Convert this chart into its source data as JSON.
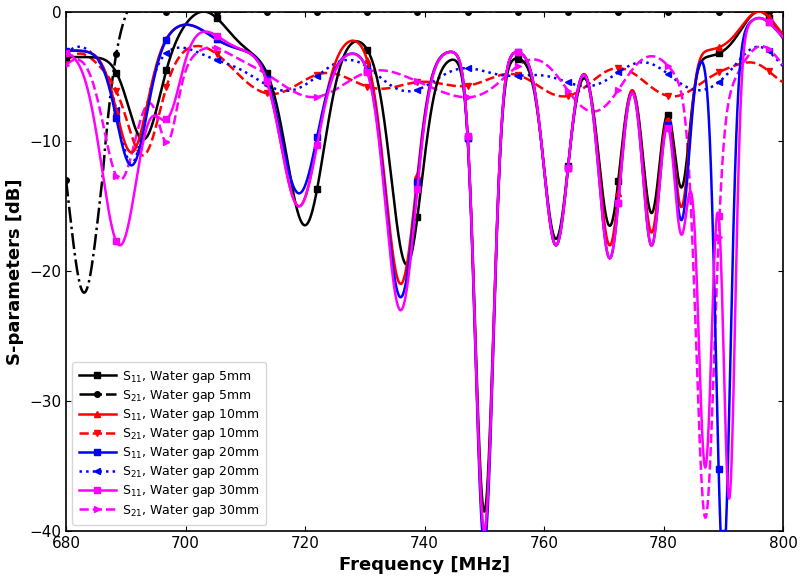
{
  "xlabel": "Frequency [MHz]",
  "ylabel": "S-parameters [dB]",
  "xlim": [
    680,
    800
  ],
  "ylim": [
    -40,
    0
  ],
  "xticks": [
    680,
    700,
    720,
    740,
    760,
    780,
    800
  ],
  "yticks": [
    0,
    -10,
    -20,
    -30,
    -40
  ],
  "legend_entries": [
    {
      "label": "S$_{11}$, Water gap 5mm",
      "color": "#000000",
      "linestyle": "-",
      "marker": "s"
    },
    {
      "label": "S$_{21}$, Water gap 5mm",
      "color": "#000000",
      "linestyle": "-.",
      "marker": "o"
    },
    {
      "label": "S$_{11}$, Water gap 10mm",
      "color": "#ff0000",
      "linestyle": "-",
      "marker": "^"
    },
    {
      "label": "S$_{21}$, Water gap 10mm",
      "color": "#ff0000",
      "linestyle": "--",
      "marker": "v"
    },
    {
      "label": "S$_{11}$, Water gap 20mm",
      "color": "#0000ff",
      "linestyle": "-",
      "marker": "s"
    },
    {
      "label": "S$_{21}$, Water gap 20mm",
      "color": "#0000ff",
      "linestyle": ":",
      "marker": "<"
    },
    {
      "label": "S$_{11}$, Water gap 30mm",
      "color": "#ff00ff",
      "linestyle": "-",
      "marker": "s"
    },
    {
      "label": "S$_{21}$, Water gap 30mm",
      "color": "#ff00ff",
      "linestyle": "--",
      "marker": ">"
    }
  ],
  "figsize": [
    8.03,
    5.8
  ],
  "dpi": 100
}
